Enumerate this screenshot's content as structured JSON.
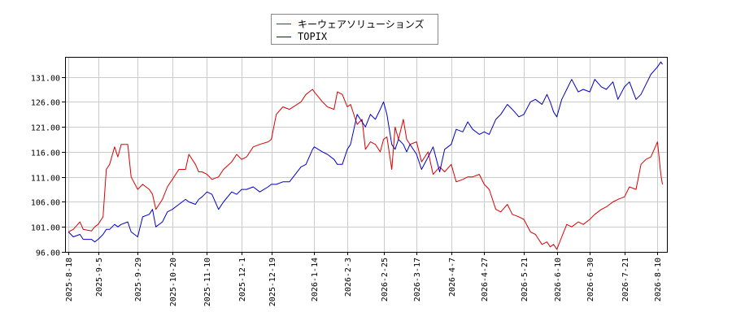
{
  "chart_data": {
    "type": "line",
    "xlabel": "",
    "ylabel": "",
    "ylim": [
      96,
      135
    ],
    "yticks": [
      "96.00",
      "101.00",
      "106.00",
      "111.00",
      "116.00",
      "121.00",
      "126.00",
      "131.00"
    ],
    "xticks": [
      "2025-8-18",
      "2025-9-5",
      "2025-9-29",
      "2025-10-20",
      "2025-11-10",
      "2025-12-1",
      "2025-12-19",
      "2026-1-14",
      "2026-2-3",
      "2026-2-25",
      "2026-3-17",
      "2026-4-7",
      "2026-4-27",
      "2026-5-21",
      "2026-6-10",
      "2026-6-30",
      "2026-7-21",
      "2026-8-10"
    ],
    "grid": true,
    "legend_position": "top-center",
    "series": [
      {
        "name": "キーウェアソリューションズ",
        "color": "#dd0000",
        "points": [
          [
            "2025-8-18",
            100.0
          ],
          [
            "2025-8-21",
            100.5
          ],
          [
            "2025-8-25",
            102.0
          ],
          [
            "2025-8-27",
            100.5
          ],
          [
            "2025-9-1",
            100.2
          ],
          [
            "2025-9-3",
            101.0
          ],
          [
            "2025-9-5",
            101.5
          ],
          [
            "2025-9-8",
            103.0
          ],
          [
            "2025-9-10",
            112.5
          ],
          [
            "2025-9-12",
            113.5
          ],
          [
            "2025-9-15",
            117.0
          ],
          [
            "2025-9-17",
            115.0
          ],
          [
            "2025-9-19",
            117.5
          ],
          [
            "2025-9-23",
            117.5
          ],
          [
            "2025-9-25",
            111.0
          ],
          [
            "2025-9-29",
            108.5
          ],
          [
            "2025-10-2",
            109.5
          ],
          [
            "2025-10-6",
            108.5
          ],
          [
            "2025-10-8",
            107.5
          ],
          [
            "2025-10-10",
            104.5
          ],
          [
            "2025-10-14",
            106.5
          ],
          [
            "2025-10-17",
            109.0
          ],
          [
            "2025-10-20",
            110.5
          ],
          [
            "2025-10-24",
            112.5
          ],
          [
            "2025-10-28",
            112.5
          ],
          [
            "2025-10-30",
            115.5
          ],
          [
            "2025-11-3",
            113.5
          ],
          [
            "2025-11-5",
            112.0
          ],
          [
            "2025-11-7",
            112.0
          ],
          [
            "2025-11-10",
            111.5
          ],
          [
            "2025-11-13",
            110.5
          ],
          [
            "2025-11-17",
            111.0
          ],
          [
            "2025-11-20",
            112.5
          ],
          [
            "2025-11-25",
            114.0
          ],
          [
            "2025-11-28",
            115.5
          ],
          [
            "2025-12-1",
            114.5
          ],
          [
            "2025-12-4",
            115.0
          ],
          [
            "2025-12-8",
            117.0
          ],
          [
            "2025-12-12",
            117.5
          ],
          [
            "2025-12-17",
            118.0
          ],
          [
            "2025-12-19",
            118.5
          ],
          [
            "2025-12-22",
            123.5
          ],
          [
            "2025-12-26",
            125.0
          ],
          [
            "2025-12-30",
            124.5
          ],
          [
            "2026-1-6",
            126.0
          ],
          [
            "2026-1-9",
            127.5
          ],
          [
            "2026-1-13",
            128.5
          ],
          [
            "2026-1-14",
            128.0
          ],
          [
            "2026-1-19",
            126.0
          ],
          [
            "2026-1-22",
            125.0
          ],
          [
            "2026-1-26",
            124.5
          ],
          [
            "2026-1-28",
            128.0
          ],
          [
            "2026-1-31",
            127.5
          ],
          [
            "2026-2-3",
            125.0
          ],
          [
            "2026-2-5",
            125.5
          ],
          [
            "2026-2-9",
            121.5
          ],
          [
            "2026-2-12",
            122.5
          ],
          [
            "2026-2-14",
            116.5
          ],
          [
            "2026-2-17",
            118.0
          ],
          [
            "2026-2-20",
            117.5
          ],
          [
            "2026-2-23",
            116.0
          ],
          [
            "2026-2-25",
            118.5
          ],
          [
            "2026-2-27",
            119.0
          ],
          [
            "2026-3-2",
            112.5
          ],
          [
            "2026-3-4",
            121.0
          ],
          [
            "2026-3-6",
            118.5
          ],
          [
            "2026-3-9",
            122.5
          ],
          [
            "2026-3-11",
            118.5
          ],
          [
            "2026-3-13",
            117.5
          ],
          [
            "2026-3-17",
            118.0
          ],
          [
            "2026-3-20",
            114.0
          ],
          [
            "2026-3-24",
            116.0
          ],
          [
            "2026-3-27",
            111.5
          ],
          [
            "2026-3-31",
            113.0
          ],
          [
            "2026-4-3",
            112.0
          ],
          [
            "2026-4-7",
            113.5
          ],
          [
            "2026-4-10",
            110.0
          ],
          [
            "2026-4-14",
            110.5
          ],
          [
            "2026-4-17",
            111.0
          ],
          [
            "2026-4-20",
            111.0
          ],
          [
            "2026-4-24",
            111.5
          ],
          [
            "2026-4-27",
            109.5
          ],
          [
            "2026-4-30",
            108.5
          ],
          [
            "2026-5-4",
            104.5
          ],
          [
            "2026-5-7",
            104.0
          ],
          [
            "2026-5-11",
            105.5
          ],
          [
            "2026-5-14",
            103.5
          ],
          [
            "2026-5-18",
            103.0
          ],
          [
            "2026-5-21",
            102.5
          ],
          [
            "2026-5-25",
            100.0
          ],
          [
            "2026-5-28",
            99.5
          ],
          [
            "2026-6-1",
            97.5
          ],
          [
            "2026-6-4",
            98.0
          ],
          [
            "2026-6-6",
            97.0
          ],
          [
            "2026-6-8",
            97.5
          ],
          [
            "2026-6-10",
            96.5
          ],
          [
            "2026-6-13",
            99.0
          ],
          [
            "2026-6-16",
            101.5
          ],
          [
            "2026-6-19",
            101.0
          ],
          [
            "2026-6-23",
            102.0
          ],
          [
            "2026-6-26",
            101.5
          ],
          [
            "2026-6-30",
            102.5
          ],
          [
            "2026-7-3",
            103.5
          ],
          [
            "2026-7-7",
            104.5
          ],
          [
            "2026-7-10",
            105.0
          ],
          [
            "2026-7-14",
            106.0
          ],
          [
            "2026-7-17",
            106.5
          ],
          [
            "2026-7-21",
            107.0
          ],
          [
            "2026-7-24",
            109.0
          ],
          [
            "2026-7-28",
            108.5
          ],
          [
            "2026-7-31",
            113.5
          ],
          [
            "2026-8-3",
            114.5
          ],
          [
            "2026-8-6",
            115.0
          ],
          [
            "2026-8-10",
            118.0
          ],
          [
            "2026-8-12",
            111.5
          ],
          [
            "2026-8-13",
            109.5
          ]
        ]
      },
      {
        "name": "TOPIX",
        "color": "#0000cc",
        "points": [
          [
            "2025-8-18",
            100.0
          ],
          [
            "2025-8-21",
            99.0
          ],
          [
            "2025-8-25",
            99.5
          ],
          [
            "2025-8-27",
            98.5
          ],
          [
            "2025-9-1",
            98.5
          ],
          [
            "2025-9-3",
            98.0
          ],
          [
            "2025-9-5",
            98.5
          ],
          [
            "2025-9-8",
            99.5
          ],
          [
            "2025-9-10",
            100.5
          ],
          [
            "2025-9-12",
            100.5
          ],
          [
            "2025-9-15",
            101.5
          ],
          [
            "2025-9-17",
            101.0
          ],
          [
            "2025-9-19",
            101.5
          ],
          [
            "2025-9-23",
            102.0
          ],
          [
            "2025-9-25",
            100.0
          ],
          [
            "2025-9-29",
            99.0
          ],
          [
            "2025-10-2",
            103.0
          ],
          [
            "2025-10-6",
            103.5
          ],
          [
            "2025-10-8",
            104.5
          ],
          [
            "2025-10-10",
            101.0
          ],
          [
            "2025-10-14",
            102.0
          ],
          [
            "2025-10-17",
            104.0
          ],
          [
            "2025-10-20",
            104.5
          ],
          [
            "2025-10-24",
            105.5
          ],
          [
            "2025-10-28",
            106.5
          ],
          [
            "2025-10-30",
            106.0
          ],
          [
            "2025-11-3",
            105.5
          ],
          [
            "2025-11-5",
            106.5
          ],
          [
            "2025-11-7",
            107.0
          ],
          [
            "2025-11-10",
            108.0
          ],
          [
            "2025-11-13",
            107.5
          ],
          [
            "2025-11-17",
            104.5
          ],
          [
            "2025-11-20",
            106.0
          ],
          [
            "2025-11-25",
            108.0
          ],
          [
            "2025-11-28",
            107.5
          ],
          [
            "2025-12-1",
            108.5
          ],
          [
            "2025-12-4",
            108.5
          ],
          [
            "2025-12-8",
            109.0
          ],
          [
            "2025-12-12",
            108.0
          ],
          [
            "2025-12-17",
            109.0
          ],
          [
            "2025-12-19",
            109.5
          ],
          [
            "2025-12-22",
            109.5
          ],
          [
            "2025-12-26",
            110.0
          ],
          [
            "2025-12-30",
            110.0
          ],
          [
            "2026-1-6",
            113.0
          ],
          [
            "2026-1-9",
            113.5
          ],
          [
            "2026-1-13",
            116.5
          ],
          [
            "2026-1-14",
            117.0
          ],
          [
            "2026-1-19",
            116.0
          ],
          [
            "2026-1-22",
            115.5
          ],
          [
            "2026-1-26",
            114.5
          ],
          [
            "2026-1-28",
            113.5
          ],
          [
            "2026-1-31",
            113.5
          ],
          [
            "2026-2-3",
            116.5
          ],
          [
            "2026-2-5",
            117.5
          ],
          [
            "2026-2-9",
            123.5
          ],
          [
            "2026-2-12",
            122.0
          ],
          [
            "2026-2-14",
            121.0
          ],
          [
            "2026-2-17",
            123.5
          ],
          [
            "2026-2-20",
            122.5
          ],
          [
            "2026-2-23",
            124.5
          ],
          [
            "2026-2-25",
            126.0
          ],
          [
            "2026-2-27",
            123.5
          ],
          [
            "2026-3-2",
            117.5
          ],
          [
            "2026-3-4",
            116.5
          ],
          [
            "2026-3-6",
            118.5
          ],
          [
            "2026-3-9",
            117.5
          ],
          [
            "2026-3-11",
            116.0
          ],
          [
            "2026-3-13",
            117.5
          ],
          [
            "2026-3-17",
            115.5
          ],
          [
            "2026-3-20",
            112.5
          ],
          [
            "2026-3-24",
            115.0
          ],
          [
            "2026-3-27",
            117.0
          ],
          [
            "2026-3-31",
            112.0
          ],
          [
            "2026-4-3",
            116.5
          ],
          [
            "2026-4-7",
            117.5
          ],
          [
            "2026-4-10",
            120.5
          ],
          [
            "2026-4-14",
            120.0
          ],
          [
            "2026-4-17",
            122.0
          ],
          [
            "2026-4-20",
            120.5
          ],
          [
            "2026-4-24",
            119.5
          ],
          [
            "2026-4-27",
            120.0
          ],
          [
            "2026-4-30",
            119.5
          ],
          [
            "2026-5-4",
            122.5
          ],
          [
            "2026-5-7",
            123.5
          ],
          [
            "2026-5-11",
            125.5
          ],
          [
            "2026-5-14",
            124.5
          ],
          [
            "2026-5-18",
            123.0
          ],
          [
            "2026-5-21",
            123.5
          ],
          [
            "2026-5-25",
            126.0
          ],
          [
            "2026-5-28",
            126.5
          ],
          [
            "2026-6-1",
            125.5
          ],
          [
            "2026-6-4",
            127.5
          ],
          [
            "2026-6-6",
            126.0
          ],
          [
            "2026-6-8",
            124.0
          ],
          [
            "2026-6-10",
            123.0
          ],
          [
            "2026-6-13",
            126.5
          ],
          [
            "2026-6-16",
            128.5
          ],
          [
            "2026-6-19",
            130.5
          ],
          [
            "2026-6-23",
            128.0
          ],
          [
            "2026-6-26",
            128.5
          ],
          [
            "2026-6-30",
            128.0
          ],
          [
            "2026-7-3",
            130.5
          ],
          [
            "2026-7-7",
            129.0
          ],
          [
            "2026-7-10",
            128.5
          ],
          [
            "2026-7-14",
            130.0
          ],
          [
            "2026-7-17",
            126.5
          ],
          [
            "2026-7-21",
            129.0
          ],
          [
            "2026-7-24",
            130.0
          ],
          [
            "2026-7-28",
            126.5
          ],
          [
            "2026-7-31",
            127.5
          ],
          [
            "2026-8-3",
            129.5
          ],
          [
            "2026-8-6",
            131.5
          ],
          [
            "2026-8-10",
            133.0
          ],
          [
            "2026-8-12",
            134.0
          ],
          [
            "2026-8-13",
            133.5
          ]
        ]
      }
    ]
  }
}
